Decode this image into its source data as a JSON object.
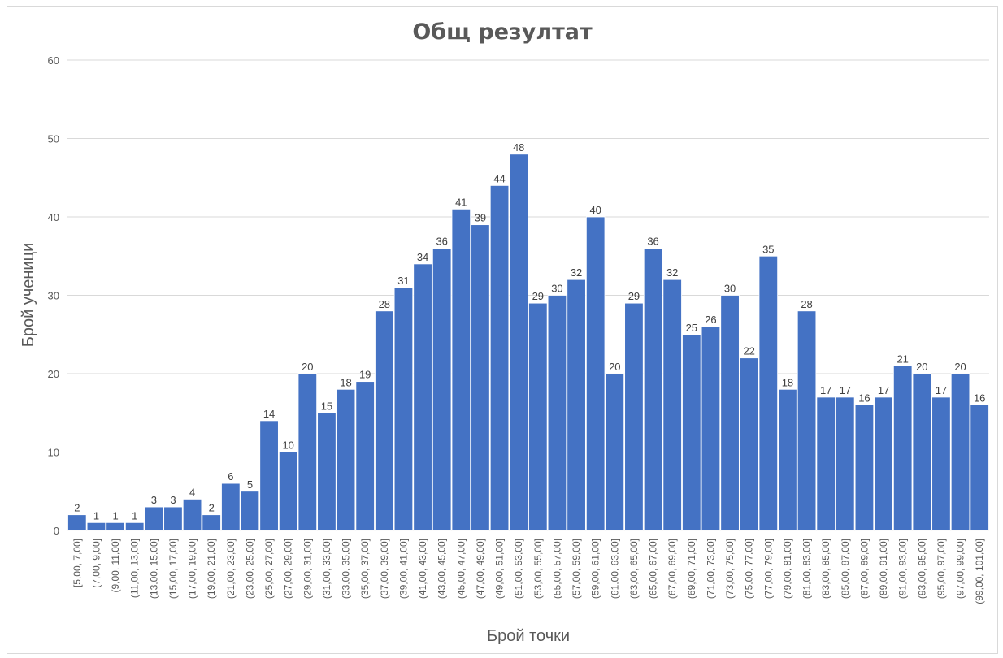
{
  "chart_data": {
    "type": "bar",
    "title": "Общ резултат",
    "xlabel": "Брой точки",
    "ylabel": "Брой ученици",
    "ylim": [
      0,
      60
    ],
    "yticks": [
      0,
      10,
      20,
      30,
      40,
      50,
      60
    ],
    "grid": true,
    "bar_color": "#4472C4",
    "categories": [
      "[5,00, 7,00]",
      "(7,00, 9,00]",
      "(9,00, 11,00]",
      "(11,00, 13,00]",
      "(13,00, 15,00]",
      "(15,00, 17,00]",
      "(17,00, 19,00]",
      "(19,00, 21,00]",
      "(21,00, 23,00]",
      "(23,00, 25,00]",
      "(25,00, 27,00]",
      "(27,00, 29,00]",
      "(29,00, 31,00]",
      "(31,00, 33,00]",
      "(33,00, 35,00]",
      "(35,00, 37,00]",
      "(37,00, 39,00]",
      "(39,00, 41,00]",
      "(41,00, 43,00]",
      "(43,00, 45,00]",
      "(45,00, 47,00]",
      "(47,00, 49,00]",
      "(49,00, 51,00]",
      "(51,00, 53,00]",
      "(53,00, 55,00]",
      "(55,00, 57,00]",
      "(57,00, 59,00]",
      "(59,00, 61,00]",
      "(61,00, 63,00]",
      "(63,00, 65,00]",
      "(65,00, 67,00]",
      "(67,00, 69,00]",
      "(69,00, 71,00]",
      "(71,00, 73,00]",
      "(73,00, 75,00]",
      "(75,00, 77,00]",
      "(77,00, 79,00]",
      "(79,00, 81,00]",
      "(81,00, 83,00]",
      "(83,00, 85,00]",
      "(85,00, 87,00]",
      "(87,00, 89,00]",
      "(89,00, 91,00]",
      "(91,00, 93,00]",
      "(93,00, 95,00]",
      "(95,00, 97,00]",
      "(97,00, 99,00]",
      "(99,00, 101,00]"
    ],
    "values": [
      2,
      1,
      1,
      1,
      3,
      3,
      4,
      2,
      6,
      5,
      14,
      10,
      20,
      15,
      18,
      19,
      28,
      31,
      34,
      36,
      41,
      39,
      44,
      48,
      29,
      30,
      32,
      40,
      20,
      29,
      36,
      32,
      25,
      26,
      30,
      22,
      35,
      18,
      28,
      17,
      17,
      16,
      17,
      21,
      20,
      17,
      20,
      16
    ]
  }
}
